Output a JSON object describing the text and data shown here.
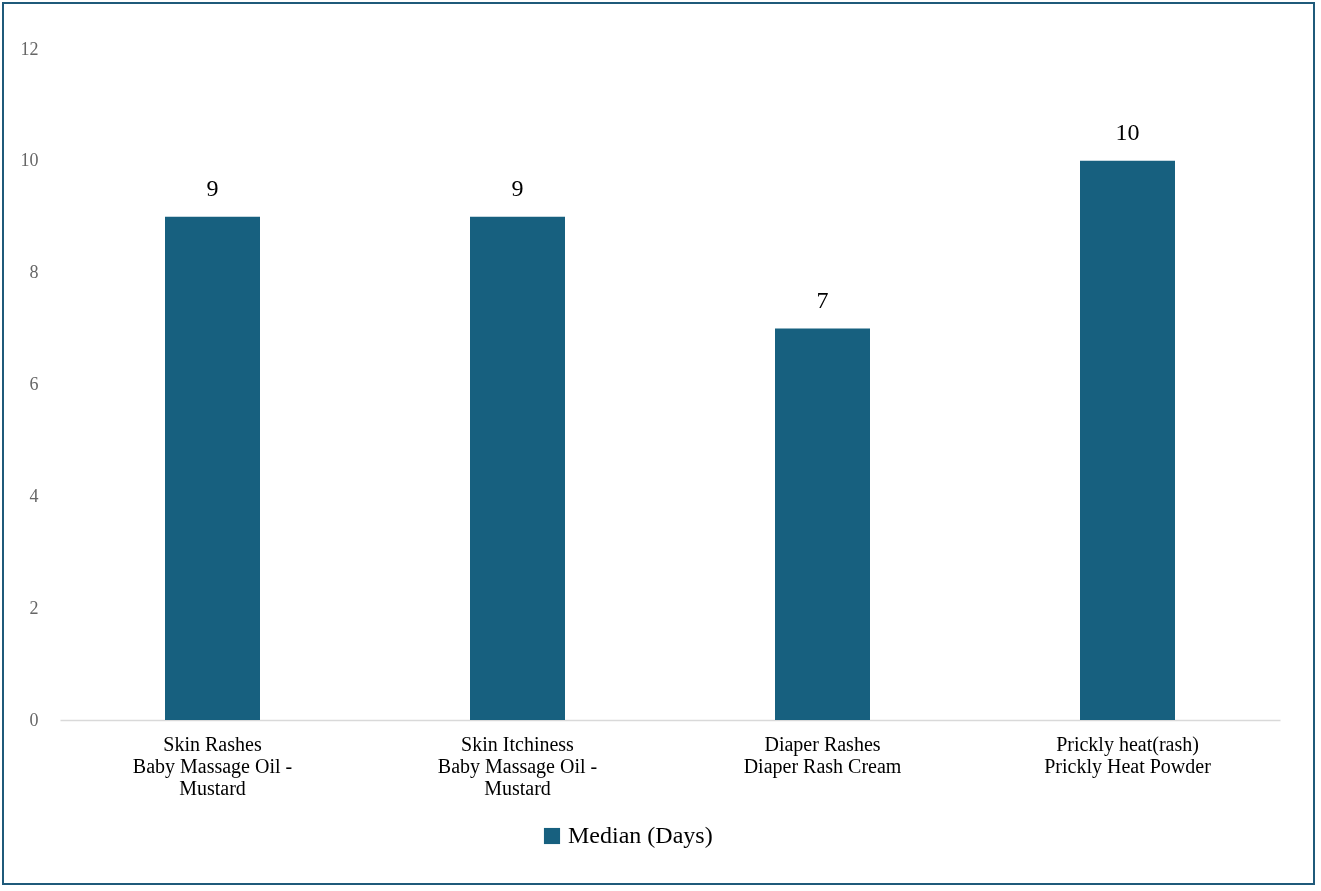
{
  "chart_data": {
    "type": "bar",
    "categories": [
      "Skin Rashes\nBaby Massage Oil -\nMustard",
      "Skin Itchiness\nBaby Massage Oil -\nMustard",
      "Diaper Rashes\nDiaper Rash Cream",
      "Prickly heat(rash)\nPrickly Heat Powder"
    ],
    "series": [
      {
        "name": "Median (Days)",
        "color": "#17607f",
        "values": [
          9,
          9,
          7,
          10
        ]
      }
    ],
    "ylim": [
      0,
      12
    ],
    "yticks": [
      0,
      2,
      4,
      6,
      8,
      10,
      12
    ],
    "grid": false,
    "legend": "bottom",
    "data_labels": true
  }
}
